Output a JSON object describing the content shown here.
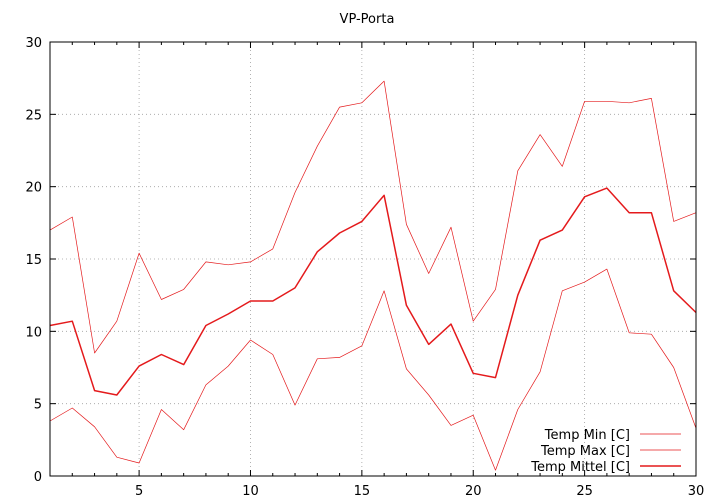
{
  "chart_data": {
    "type": "line",
    "title": "VP-Porta",
    "xlabel": "",
    "ylabel": "",
    "xlim": [
      1,
      30
    ],
    "ylim": [
      0,
      30
    ],
    "xticks": [
      5,
      10,
      15,
      20,
      25,
      30
    ],
    "yticks": [
      0,
      5,
      10,
      15,
      20,
      25,
      30
    ],
    "grid": true,
    "legend_position": "bottom-right",
    "x": [
      1,
      2,
      3,
      4,
      5,
      6,
      7,
      8,
      9,
      10,
      11,
      12,
      13,
      14,
      15,
      16,
      17,
      18,
      19,
      20,
      21,
      22,
      23,
      24,
      25,
      26,
      27,
      28,
      29,
      30
    ],
    "series": [
      {
        "name": "Temp Min [C]",
        "color": "#e41a1c",
        "line_width": "thin",
        "values": [
          3.8,
          4.7,
          3.4,
          1.3,
          0.9,
          4.6,
          3.2,
          6.3,
          7.6,
          9.4,
          8.4,
          4.9,
          8.1,
          8.2,
          9.0,
          12.8,
          7.4,
          5.6,
          3.5,
          4.2,
          0.4,
          4.6,
          7.2,
          12.8,
          13.4,
          14.3,
          9.9,
          9.8,
          7.5,
          3.3
        ]
      },
      {
        "name": "Temp Max [C]",
        "color": "#e41a1c",
        "line_width": "thin",
        "values": [
          17.0,
          17.9,
          8.5,
          10.7,
          15.4,
          12.2,
          12.9,
          14.8,
          14.6,
          14.8,
          15.7,
          19.6,
          22.8,
          25.5,
          25.8,
          27.3,
          17.4,
          14.0,
          17.2,
          10.7,
          12.9,
          21.1,
          23.6,
          21.4,
          25.9,
          25.9,
          25.8,
          26.1,
          17.6,
          18.2
        ]
      },
      {
        "name": "Temp Mittel [C]",
        "color": "#e41a1c",
        "line_width": "thick",
        "values": [
          10.4,
          10.7,
          5.9,
          5.6,
          7.6,
          8.4,
          7.7,
          10.4,
          11.2,
          12.1,
          12.1,
          13.0,
          15.5,
          16.8,
          17.6,
          19.4,
          11.8,
          9.1,
          10.5,
          7.1,
          6.8,
          12.5,
          16.3,
          17.0,
          19.3,
          19.9,
          18.2,
          18.2,
          12.8,
          11.3
        ]
      }
    ]
  }
}
